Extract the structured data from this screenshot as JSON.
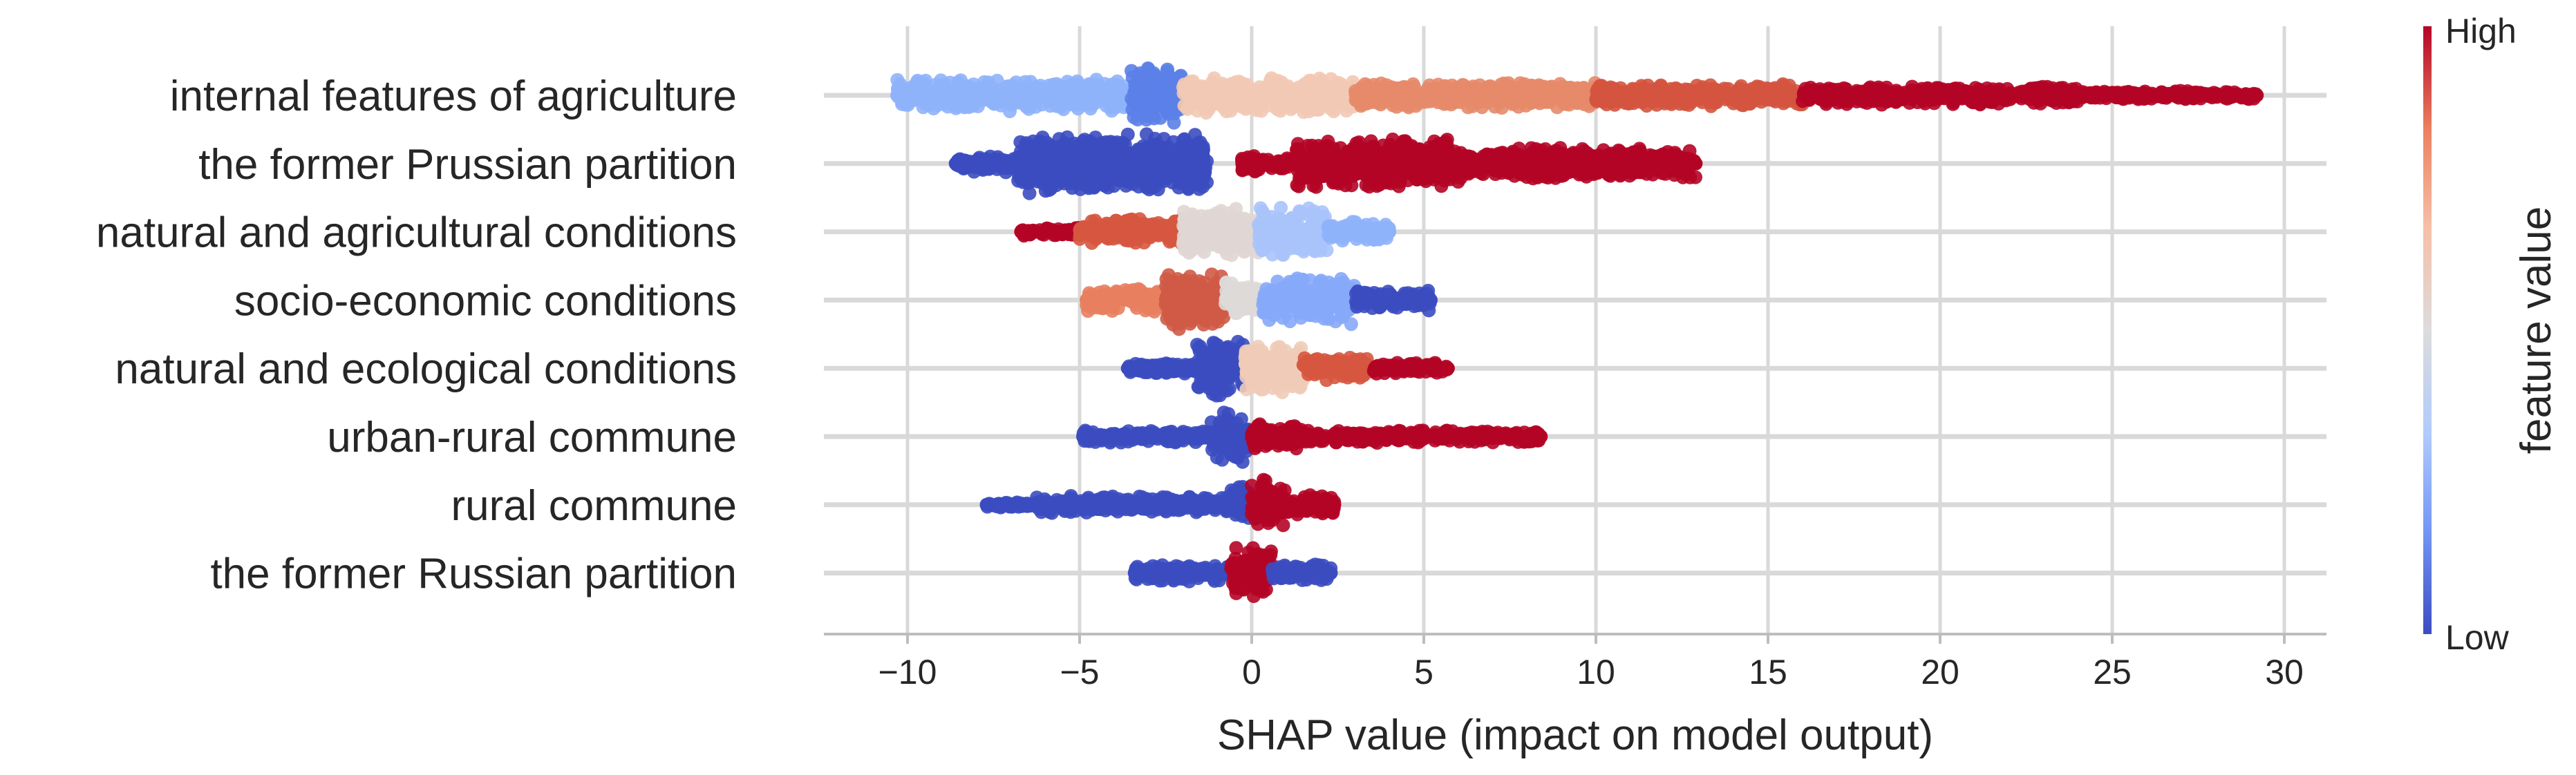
{
  "chart_data": {
    "type": "beeswarm",
    "title": "",
    "xlabel": "SHAP value (impact on model output)",
    "xlim": [
      -12.5,
      31.2
    ],
    "xticks": [
      -10,
      -5,
      0,
      5,
      10,
      15,
      20,
      25,
      30
    ],
    "xtick_labels": [
      "−10",
      "−5",
      "0",
      "5",
      "10",
      "15",
      "20",
      "25",
      "30"
    ],
    "colorbar": {
      "label": "feature value",
      "high_label": "High",
      "low_label": "Low",
      "colors": [
        "#3b4cc0",
        "#7396f5",
        "#b0cbfc",
        "#dddcdc",
        "#f6bfa6",
        "#ec8060",
        "#b40426"
      ]
    },
    "features": [
      {
        "name": "internal features of agriculture",
        "min": -10.3,
        "max": 29.2,
        "segments": [
          [
            -10.3,
            -3.5,
            "#8fb2fb",
            0.55
          ],
          [
            -3.5,
            -2.0,
            "#5b7fe8",
            1.0
          ],
          [
            -2.0,
            3.0,
            "#f2c9b4",
            0.6
          ],
          [
            3.0,
            10.0,
            "#e6896a",
            0.45
          ],
          [
            10.0,
            16.0,
            "#d4543f",
            0.4
          ],
          [
            16.0,
            24.0,
            "#b40426",
            0.32
          ],
          [
            24.0,
            29.2,
            "#b40426",
            0.15
          ]
        ]
      },
      {
        "name": "the former Prussian partition",
        "min": -8.6,
        "max": 12.9,
        "segments": [
          [
            -8.6,
            -6.8,
            "#3b4cc0",
            0.3
          ],
          [
            -6.8,
            -1.3,
            "#3b4cc0",
            1.0
          ],
          [
            -0.3,
            1.2,
            "#b40426",
            0.28
          ],
          [
            1.3,
            6.0,
            "#b40426",
            0.9
          ],
          [
            6.0,
            12.9,
            "#b40426",
            0.55
          ]
        ]
      },
      {
        "name": "natural and agricultural conditions",
        "min": -6.7,
        "max": 4.0,
        "segments": [
          [
            -6.7,
            -5.0,
            "#b40426",
            0.15
          ],
          [
            -5.0,
            -2.0,
            "#d6573f",
            0.45
          ],
          [
            -2.0,
            0.2,
            "#e0d6d4",
            0.8
          ],
          [
            0.2,
            2.2,
            "#a9c3fb",
            0.85
          ],
          [
            2.2,
            4.0,
            "#8fb2fb",
            0.35
          ]
        ]
      },
      {
        "name": "socio-economic conditions",
        "min": -4.8,
        "max": 5.2,
        "segments": [
          [
            -4.8,
            -2.5,
            "#e8805f",
            0.4
          ],
          [
            -2.5,
            -0.8,
            "#cf5a46",
            1.0
          ],
          [
            -0.8,
            0.3,
            "#ddd9d8",
            0.7
          ],
          [
            0.3,
            3.0,
            "#86a9f8",
            0.8
          ],
          [
            3.0,
            5.2,
            "#3b4cc0",
            0.35
          ]
        ]
      },
      {
        "name": "natural and ecological conditions",
        "min": -3.6,
        "max": 5.7,
        "segments": [
          [
            -3.6,
            -1.6,
            "#3b4cc0",
            0.2
          ],
          [
            -1.6,
            -0.2,
            "#3b4cc0",
            1.0
          ],
          [
            -0.2,
            1.5,
            "#f0ccb8",
            0.85
          ],
          [
            1.5,
            3.5,
            "#d6573f",
            0.4
          ],
          [
            3.5,
            5.7,
            "#b40426",
            0.2
          ]
        ]
      },
      {
        "name": "urban-rural commune",
        "min": -4.9,
        "max": 8.4,
        "segments": [
          [
            -4.9,
            -1.2,
            "#3b4cc0",
            0.22
          ],
          [
            -1.2,
            -0.1,
            "#3b4cc0",
            0.85
          ],
          [
            0.0,
            1.5,
            "#b40426",
            0.45
          ],
          [
            1.5,
            8.4,
            "#b40426",
            0.22
          ]
        ]
      },
      {
        "name": "rural commune",
        "min": -7.7,
        "max": 2.4,
        "segments": [
          [
            -7.7,
            -6.3,
            "#3b4cc0",
            0.1
          ],
          [
            -6.3,
            -0.6,
            "#3b4cc0",
            0.3
          ],
          [
            -0.6,
            0.0,
            "#3b4cc0",
            0.75
          ],
          [
            0.0,
            1.0,
            "#b40426",
            0.85
          ],
          [
            1.0,
            2.4,
            "#b40426",
            0.35
          ]
        ]
      },
      {
        "name": "the former Russian partition",
        "min": -3.4,
        "max": 2.3,
        "segments": [
          [
            -3.4,
            -0.6,
            "#3b4cc0",
            0.3
          ],
          [
            -0.6,
            0.6,
            "#b40426",
            0.9
          ],
          [
            0.6,
            2.3,
            "#3b4cc0",
            0.3
          ]
        ]
      }
    ]
  }
}
